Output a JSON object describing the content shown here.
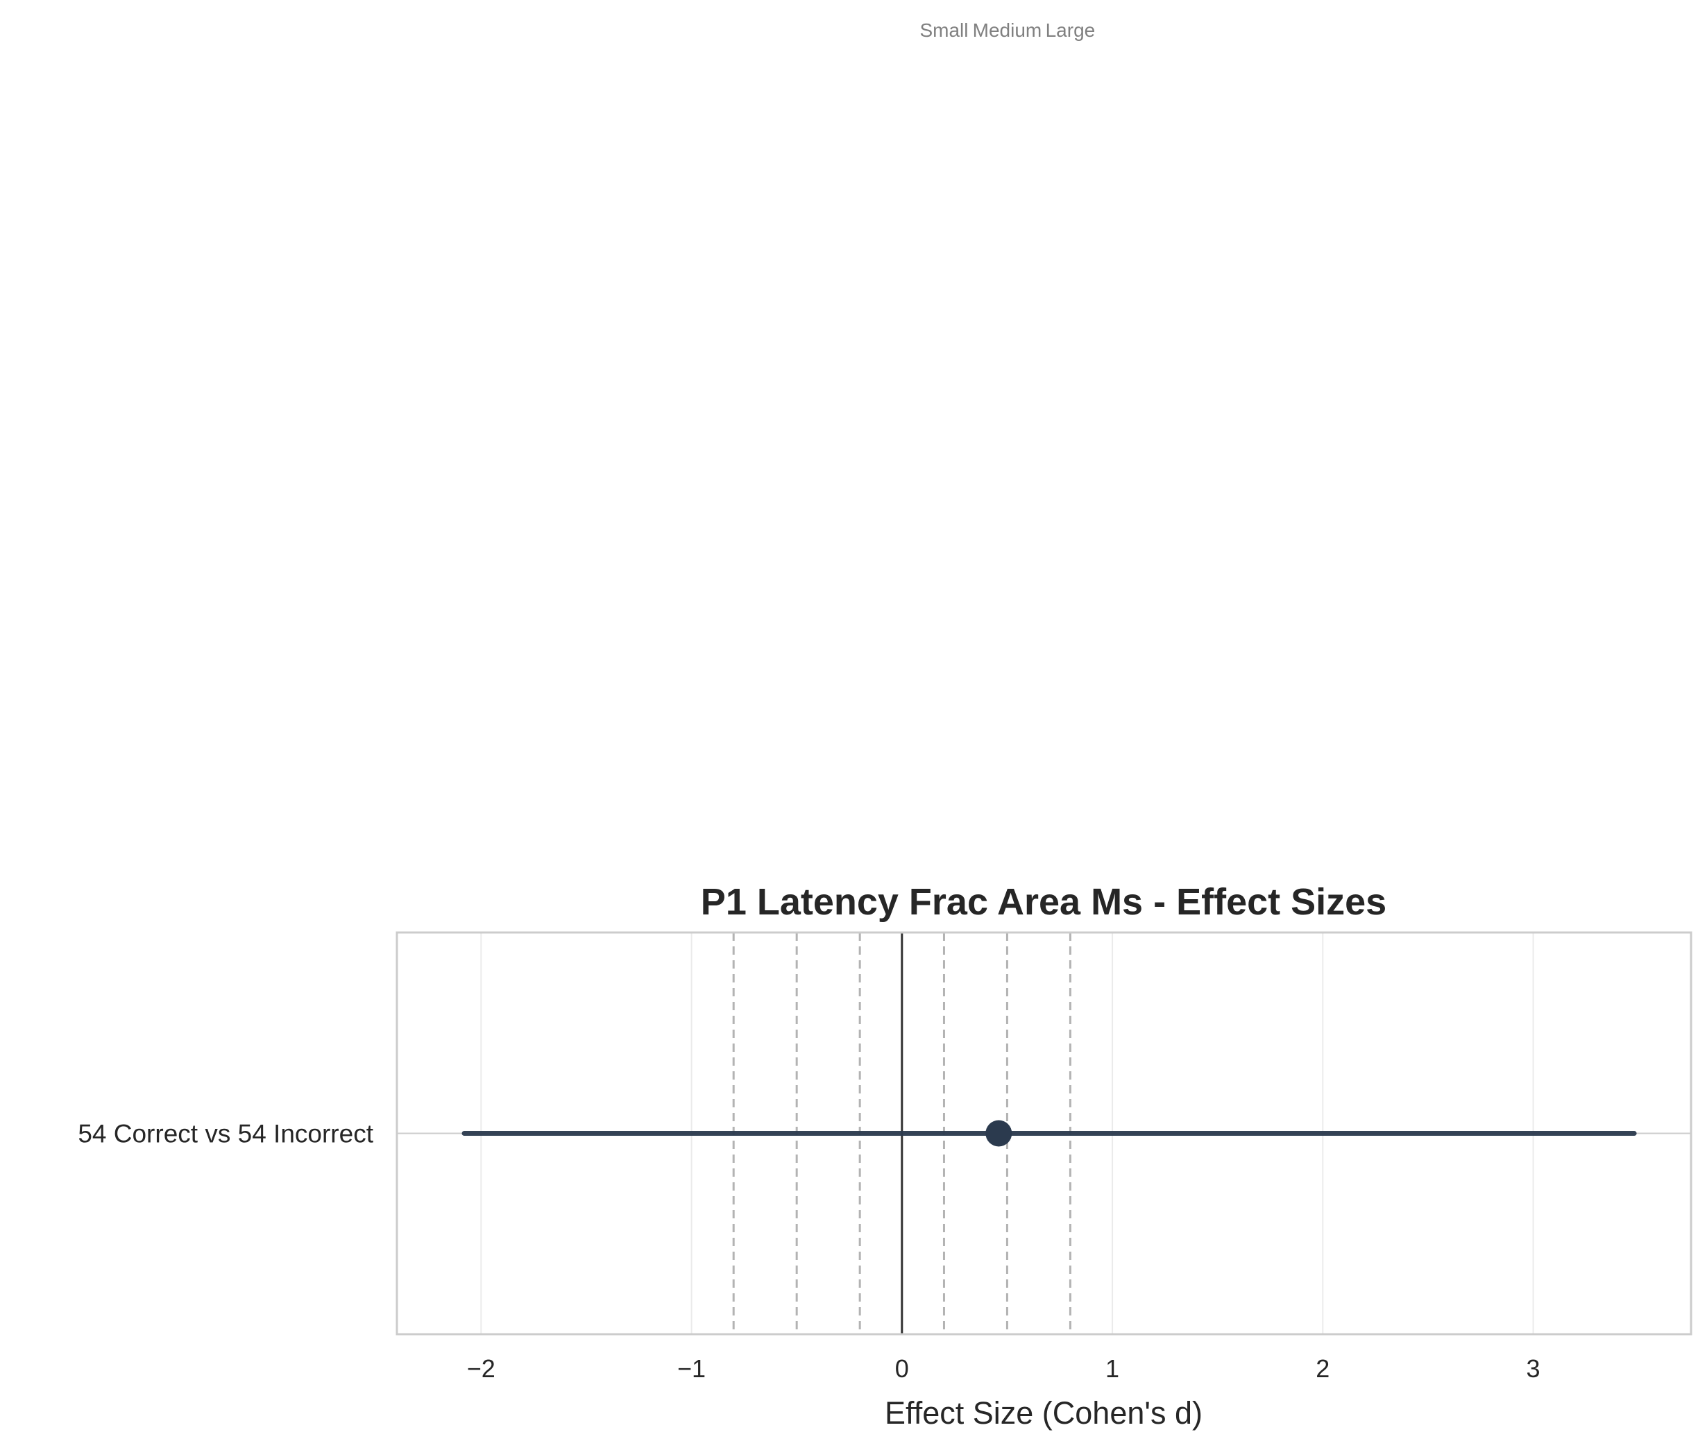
{
  "chart_data": {
    "type": "scatter",
    "title": "P1 Latency Frac Area Ms - Effect Sizes",
    "xlabel": "Effect Size (Cohen's d)",
    "ylabel": "",
    "xlim": [
      -2.4,
      3.75
    ],
    "xticks": [
      -2,
      -1,
      0,
      1,
      2,
      3
    ],
    "xtick_labels": [
      "−2",
      "−1",
      "0",
      "1",
      "2",
      "3"
    ],
    "categories": [
      "54 Correct vs 54 Incorrect"
    ],
    "points": [
      {
        "category": "54 Correct vs 54 Incorrect",
        "effect": 0.46,
        "ci_low": -2.08,
        "ci_high": 3.48
      }
    ],
    "zero_line": 0,
    "reference_lines": [
      -0.8,
      -0.5,
      -0.2,
      0.2,
      0.5,
      0.8
    ],
    "reference_labels": [
      {
        "text": "Small",
        "x": 0.2
      },
      {
        "text": "Medium",
        "x": 0.5
      },
      {
        "text": "Large",
        "x": 0.8
      }
    ],
    "grid": true,
    "color": "#2b3a4e"
  }
}
